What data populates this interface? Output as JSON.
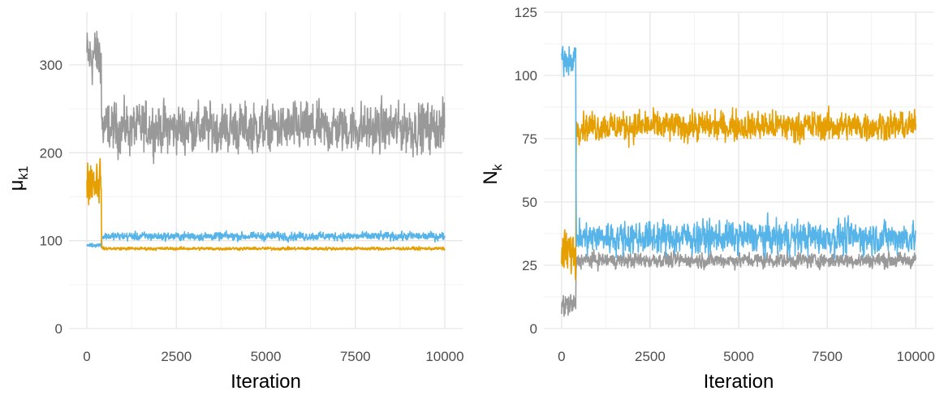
{
  "colors": {
    "grey": "#999999",
    "orange": "#E69F00",
    "skyblue": "#56B4E9"
  },
  "chart_data": [
    {
      "type": "line",
      "title": "",
      "xlabel": "Iteration",
      "ylabel": {
        "base": "μ",
        "sub": "k1"
      },
      "xlim": [
        0,
        10000
      ],
      "ylim": [
        0,
        360
      ],
      "x_ticks": [
        0,
        2500,
        5000,
        7500,
        10000
      ],
      "x_tick_labels": [
        "0",
        "2500",
        "5000",
        "7500",
        "10000"
      ],
      "y_ticks": [
        0,
        100,
        200,
        300
      ],
      "y_tick_labels": [
        "0",
        "100",
        "200",
        "300"
      ],
      "grid": true,
      "legend": "none",
      "series": [
        {
          "color": "#999999",
          "segments": [
            {
              "from": 0,
              "to": 400,
              "mean": 310,
              "spread": 28
            },
            {
              "from": 400,
              "to": 10000,
              "mean": 228,
              "spread": 24
            }
          ]
        },
        {
          "color": "#56B4E9",
          "segments": [
            {
              "from": 0,
              "to": 400,
              "mean": 95,
              "spread": 2
            },
            {
              "from": 400,
              "to": 10000,
              "mean": 105,
              "spread": 4
            }
          ]
        },
        {
          "color": "#E69F00",
          "segments": [
            {
              "from": 0,
              "to": 400,
              "mean": 170,
              "spread": 22
            },
            {
              "from": 400,
              "to": 10000,
              "mean": 91,
              "spread": 1.5
            }
          ]
        }
      ]
    },
    {
      "type": "line",
      "title": "",
      "xlabel": "Iteration",
      "ylabel": {
        "base": "N",
        "sub": "k"
      },
      "xlim": [
        0,
        10000
      ],
      "ylim": [
        0,
        125
      ],
      "x_ticks": [
        0,
        2500,
        5000,
        7500,
        10000
      ],
      "x_tick_labels": [
        "0",
        "2500",
        "5000",
        "7500",
        "10000"
      ],
      "y_ticks": [
        0,
        25,
        50,
        75,
        100,
        125
      ],
      "y_tick_labels": [
        "0",
        "25",
        "50",
        "75",
        "100",
        "125"
      ],
      "grid": true,
      "legend": "none",
      "series": [
        {
          "color": "#999999",
          "segments": [
            {
              "from": 0,
              "to": 400,
              "mean": 9,
              "spread": 4
            },
            {
              "from": 400,
              "to": 10000,
              "mean": 27,
              "spread": 2.5
            }
          ]
        },
        {
          "color": "#E69F00",
          "segments": [
            {
              "from": 0,
              "to": 400,
              "mean": 30,
              "spread": 8
            },
            {
              "from": 400,
              "to": 10000,
              "mean": 80,
              "spread": 5
            }
          ]
        },
        {
          "color": "#56B4E9",
          "segments": [
            {
              "from": 0,
              "to": 400,
              "mean": 107,
              "spread": 5
            },
            {
              "from": 400,
              "to": 10000,
              "mean": 36,
              "spread": 5.5
            }
          ]
        }
      ]
    }
  ]
}
